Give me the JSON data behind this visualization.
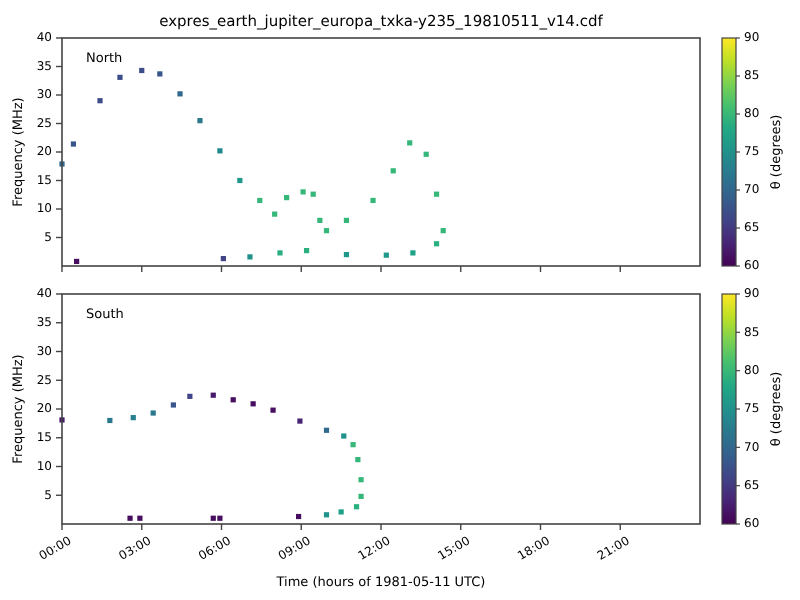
{
  "chart_data": [
    {
      "type": "scatter",
      "title": "expres_earth_jupiter_europa_txka-y235_19810511_v14.cdf",
      "ylabel": "Frequency (MHz)",
      "clabel": "θ (degrees)",
      "annotations": [
        "North"
      ],
      "tick_labels": "y",
      "marker": "square",
      "xlim": [
        0,
        24
      ],
      "xticks": [
        {
          "value": 0,
          "label": null
        },
        {
          "value": 3,
          "label": null
        },
        {
          "value": 6,
          "label": null
        },
        {
          "value": 9,
          "label": null
        },
        {
          "value": 12,
          "label": null
        },
        {
          "value": 15,
          "label": null
        },
        {
          "value": 18,
          "label": null
        },
        {
          "value": 21,
          "label": null
        }
      ],
      "ylim": [
        0,
        40
      ],
      "yticks": [
        5,
        10,
        15,
        20,
        25,
        30,
        35,
        40
      ],
      "clim": [
        60,
        90
      ],
      "cticks": [
        60,
        65,
        70,
        75,
        80,
        85,
        90
      ],
      "x": [
        0,
        0.43,
        1.43,
        2.18,
        3.0,
        3.68,
        4.44,
        5.19,
        5.94,
        6.69,
        7.44,
        8.0,
        8.45,
        9.07,
        9.45,
        9.7,
        9.95,
        10.7,
        11.7,
        12.46,
        13.08,
        13.7,
        14.09,
        14.34,
        14.09,
        13.2,
        12.2,
        10.7,
        9.2,
        8.2,
        7.07,
        6.07,
        0.55
      ],
      "values": [
        17.9,
        21.4,
        29,
        33.1,
        34.3,
        33.7,
        30.2,
        25.5,
        20.2,
        15,
        11.5,
        9.1,
        12,
        13,
        12.6,
        8,
        6.2,
        8,
        11.5,
        16.7,
        21.6,
        19.6,
        12.6,
        6.2,
        3.9,
        2.3,
        1.9,
        2,
        2.7,
        2.3,
        1.6,
        1.3,
        0.8
      ],
      "cvalues": [
        70,
        68,
        67,
        67,
        67,
        68,
        70,
        72,
        74,
        76,
        80,
        80,
        80,
        80,
        80,
        80,
        80,
        80,
        80,
        80,
        80,
        80,
        80,
        80,
        79,
        77,
        76,
        76,
        79,
        79,
        75,
        66,
        61
      ]
    },
    {
      "type": "scatter",
      "xlabel": "Time (hours of 1981-05-11 UTC)",
      "ylabel": "Frequency (MHz)",
      "clabel": "θ (degrees)",
      "annotations": [
        "South"
      ],
      "marker": "square",
      "xlim": [
        0,
        24
      ],
      "xticks": [
        {
          "value": 0,
          "label": "00:00"
        },
        {
          "value": 3,
          "label": "03:00"
        },
        {
          "value": 6,
          "label": "06:00"
        },
        {
          "value": 9,
          "label": "09:00"
        },
        {
          "value": 12,
          "label": "12:00"
        },
        {
          "value": 15,
          "label": "15:00"
        },
        {
          "value": 18,
          "label": "18:00"
        },
        {
          "value": 21,
          "label": "21:00"
        }
      ],
      "ylim": [
        0,
        40
      ],
      "yticks": [
        5,
        10,
        15,
        20,
        25,
        30,
        35,
        40
      ],
      "clim": [
        60,
        90
      ],
      "cticks": [
        60,
        65,
        70,
        75,
        80,
        85,
        90
      ],
      "x": [
        0,
        1.8,
        2.68,
        3.43,
        4.19,
        4.81,
        5.69,
        6.44,
        7.19,
        7.94,
        8.95,
        9.95,
        10.6,
        10.95,
        11.13,
        11.25,
        11.25,
        11.08,
        10.5,
        9.95,
        8.9,
        5.69,
        5.94,
        2.56,
        2.93
      ],
      "values": [
        18.1,
        18,
        18.5,
        19.3,
        20.7,
        22.2,
        22.4,
        21.6,
        20.9,
        19.8,
        17.9,
        16.3,
        15.3,
        13.8,
        11.2,
        7.7,
        4.8,
        3,
        2.1,
        1.6,
        1.3,
        1,
        1,
        1,
        1
      ],
      "cvalues": [
        62,
        72,
        73,
        72,
        68,
        66,
        62,
        61,
        61,
        61,
        63,
        70,
        75,
        80,
        80,
        80,
        80,
        79,
        77,
        75,
        61,
        61,
        61,
        61,
        61
      ]
    }
  ]
}
